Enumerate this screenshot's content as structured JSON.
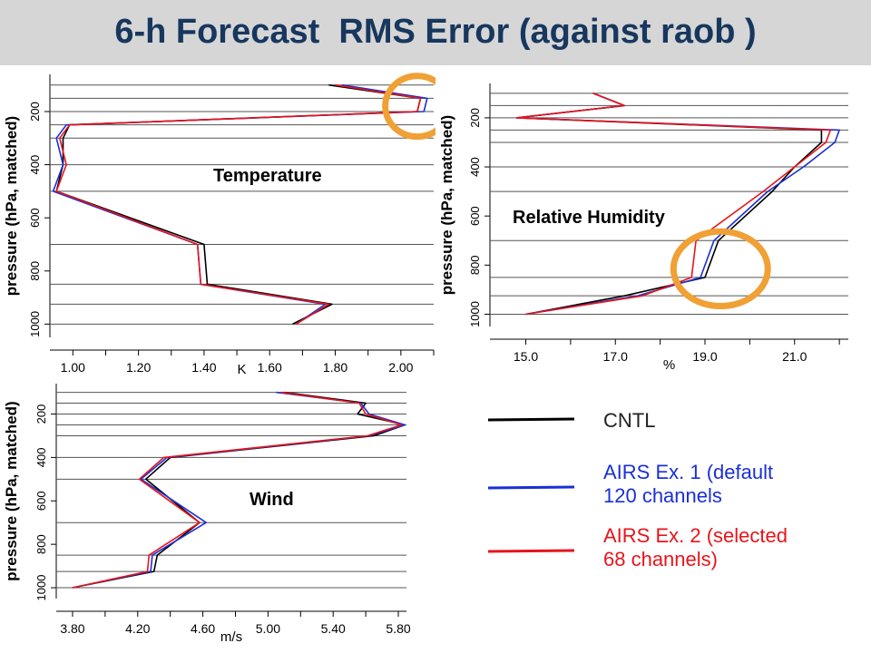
{
  "slide": {
    "title": "6-h Forecast  RMS Error (against raob )"
  },
  "colors": {
    "cntl": "#000000",
    "exp1": "#1a2fd6",
    "exp2": "#e8141b",
    "highlight_circle": "#f0a035",
    "title_text": "#17375e",
    "title_background": "#d6d6d6",
    "grid": "#555555"
  },
  "legend": {
    "items": [
      {
        "key": "cntl",
        "lines": [
          "CNTL"
        ],
        "color": "#000000"
      },
      {
        "key": "exp1",
        "lines": [
          "AIRS Ex. 1 (default",
          "120 channels"
        ],
        "color": "#1a2fd6"
      },
      {
        "key": "exp2",
        "lines": [
          "AIRS Ex. 2 (selected",
          "68 channels)"
        ],
        "color": "#e8141b"
      }
    ]
  },
  "chart_data": [
    {
      "type": "line",
      "title": "Temperature",
      "xlabel": "K",
      "ylabel": "pressure (hPa, matched)",
      "xlim": [
        0.93,
        2.1
      ],
      "ylim": [
        1050,
        60
      ],
      "y_reversed": true,
      "x_ticks": [
        "1.00",
        "1.20",
        "1.40",
        "1.60",
        "1.80",
        "2.00"
      ],
      "y_ticks": [
        "200",
        "400",
        "600",
        "800",
        "1000"
      ],
      "grid_pressures": [
        1000,
        925,
        850,
        700,
        500,
        400,
        300,
        250,
        200,
        150,
        100
      ],
      "highlight": {
        "shape": "circle",
        "x_range": [
          1.98,
          2.12
        ],
        "y_range": [
          100,
          260
        ]
      },
      "series": [
        {
          "name": "CNTL",
          "x": [
            1.67,
            1.79,
            1.41,
            1.4,
            0.95,
            0.97,
            0.97,
            0.99,
            2.05,
            2.06,
            1.78
          ],
          "y": [
            1000,
            925,
            850,
            700,
            500,
            400,
            300,
            250,
            200,
            150,
            100
          ]
        },
        {
          "name": "AIRS Ex. 1 (default 120 channels",
          "x": [
            1.68,
            1.77,
            1.39,
            1.38,
            0.94,
            0.97,
            0.95,
            0.98,
            2.07,
            2.08,
            1.82
          ],
          "y": [
            1000,
            925,
            850,
            700,
            500,
            400,
            300,
            250,
            200,
            150,
            100
          ]
        },
        {
          "name": "AIRS Ex. 2 (selected 68 channels)",
          "x": [
            1.68,
            1.78,
            1.39,
            1.38,
            0.95,
            0.98,
            0.96,
            0.99,
            2.05,
            2.06,
            1.8
          ],
          "y": [
            1000,
            925,
            850,
            700,
            500,
            400,
            300,
            250,
            200,
            150,
            100
          ]
        }
      ]
    },
    {
      "type": "line",
      "title": "Relative Humidity",
      "xlabel": "%",
      "ylabel": "pressure (hPa, matched)",
      "xlim": [
        14.2,
        22.2
      ],
      "ylim": [
        1050,
        60
      ],
      "y_reversed": true,
      "x_ticks": [
        "15.0",
        "17.0",
        "19.0",
        "21.0"
      ],
      "y_ticks": [
        "200",
        "400",
        "600",
        "800",
        "1000"
      ],
      "grid_pressures": [
        1000,
        925,
        850,
        700,
        500,
        400,
        300,
        250,
        200,
        150,
        100
      ],
      "highlight": {
        "shape": "circle",
        "x_range": [
          18.5,
          20.2
        ],
        "y_range": [
          700,
          930
        ]
      },
      "series": [
        {
          "name": "CNTL",
          "x": [
            15.0,
            17.2,
            19.0,
            19.3,
            20.5,
            21.0,
            21.6,
            21.6,
            14.8,
            17.2,
            16.5
          ],
          "y": [
            1000,
            925,
            850,
            700,
            500,
            400,
            300,
            250,
            200,
            150,
            100
          ]
        },
        {
          "name": "AIRS Ex. 1 (default 120 channels",
          "x": [
            15.0,
            17.5,
            18.9,
            19.2,
            20.4,
            21.2,
            21.9,
            22.0,
            14.8,
            17.2,
            16.5
          ],
          "y": [
            1000,
            925,
            850,
            700,
            500,
            400,
            300,
            250,
            200,
            150,
            100
          ]
        },
        {
          "name": "AIRS Ex. 2 (selected 68 channels)",
          "x": [
            15.0,
            17.6,
            18.7,
            18.8,
            20.3,
            21.0,
            21.7,
            21.8,
            14.8,
            17.2,
            16.5
          ],
          "y": [
            1000,
            925,
            850,
            700,
            500,
            400,
            300,
            250,
            200,
            150,
            100
          ]
        }
      ]
    },
    {
      "type": "line",
      "title": "Wind",
      "xlabel": "m/s",
      "ylabel": "pressure (hPa, matched)",
      "xlim": [
        3.7,
        5.85
      ],
      "ylim": [
        1050,
        60
      ],
      "y_reversed": true,
      "x_ticks": [
        "3.80",
        "4.20",
        "4.60",
        "5.00",
        "5.40",
        "5.80"
      ],
      "y_ticks": [
        "200",
        "400",
        "600",
        "800",
        "1000"
      ],
      "grid_pressures": [
        1000,
        925,
        850,
        700,
        500,
        400,
        300,
        250,
        200,
        150,
        100
      ],
      "series": [
        {
          "name": "CNTL",
          "x": [
            3.8,
            4.3,
            4.32,
            4.58,
            4.25,
            4.4,
            5.65,
            5.84,
            5.55,
            5.6,
            5.1
          ],
          "y": [
            1000,
            925,
            850,
            700,
            500,
            400,
            300,
            250,
            200,
            150,
            100
          ]
        },
        {
          "name": "AIRS Ex. 1 (default 120 channels",
          "x": [
            3.8,
            4.28,
            4.29,
            4.62,
            4.22,
            4.38,
            5.62,
            5.84,
            5.62,
            5.57,
            5.05
          ],
          "y": [
            1000,
            925,
            850,
            700,
            500,
            400,
            300,
            250,
            200,
            150,
            100
          ]
        },
        {
          "name": "AIRS Ex. 2 (selected 68 channels)",
          "x": [
            3.8,
            4.26,
            4.27,
            4.58,
            4.21,
            4.36,
            5.61,
            5.82,
            5.6,
            5.56,
            5.08
          ],
          "y": [
            1000,
            925,
            850,
            700,
            500,
            400,
            300,
            250,
            200,
            150,
            100
          ]
        }
      ]
    }
  ]
}
